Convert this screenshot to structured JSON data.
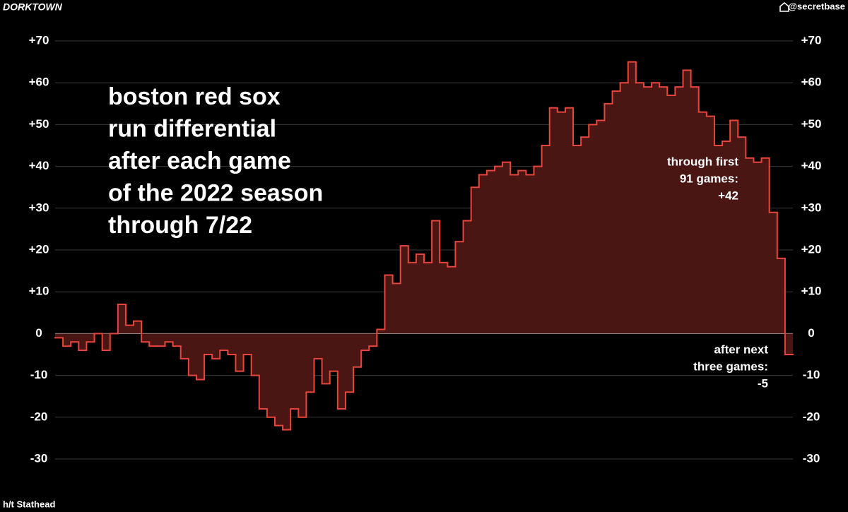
{
  "chart_data": {
    "type": "step",
    "brand": "DORKTOWN",
    "handle": "@secretbase",
    "credit": "h/t Stathead",
    "title_lines": [
      "boston red sox",
      "run differential",
      "after each game",
      "of the 2022 season",
      "through 7/22"
    ],
    "annotations": [
      {
        "lines": [
          "through first",
          "91 games:",
          "+42"
        ]
      },
      {
        "lines": [
          "after next",
          "three games:",
          "-5"
        ]
      }
    ],
    "color": "#e8453c",
    "fill": "#4a1613",
    "values": [
      -1,
      -3,
      -2,
      -4,
      -2,
      0,
      -4,
      0,
      7,
      2,
      3,
      -2,
      -3,
      -3,
      -2,
      -3,
      -6,
      -10,
      -11,
      -5,
      -6,
      -4,
      -5,
      -9,
      -5,
      -10,
      -18,
      -20,
      -22,
      -23,
      -18,
      -20,
      -14,
      -6,
      -12,
      -9,
      -18,
      -14,
      -8,
      -4,
      -3,
      1,
      14,
      12,
      21,
      17,
      19,
      17,
      27,
      17,
      16,
      22,
      27,
      35,
      38,
      39,
      40,
      41,
      38,
      39,
      38,
      40,
      45,
      54,
      53,
      54,
      45,
      47,
      50,
      51,
      55,
      58,
      60,
      65,
      60,
      59,
      60,
      59,
      57,
      59,
      63,
      59,
      53,
      52,
      45,
      46,
      51,
      47,
      42,
      41,
      42,
      29,
      18,
      -5
    ],
    "ylim": [
      -35,
      77
    ],
    "yticks": [
      {
        "value": 70,
        "label": "+70"
      },
      {
        "value": 60,
        "label": "+60"
      },
      {
        "value": 50,
        "label": "+50"
      },
      {
        "value": 40,
        "label": "+40"
      },
      {
        "value": 30,
        "label": "+30"
      },
      {
        "value": 20,
        "label": "+20"
      },
      {
        "value": 10,
        "label": "+10"
      },
      0,
      -10,
      -20,
      -30
    ],
    "grid": true
  }
}
